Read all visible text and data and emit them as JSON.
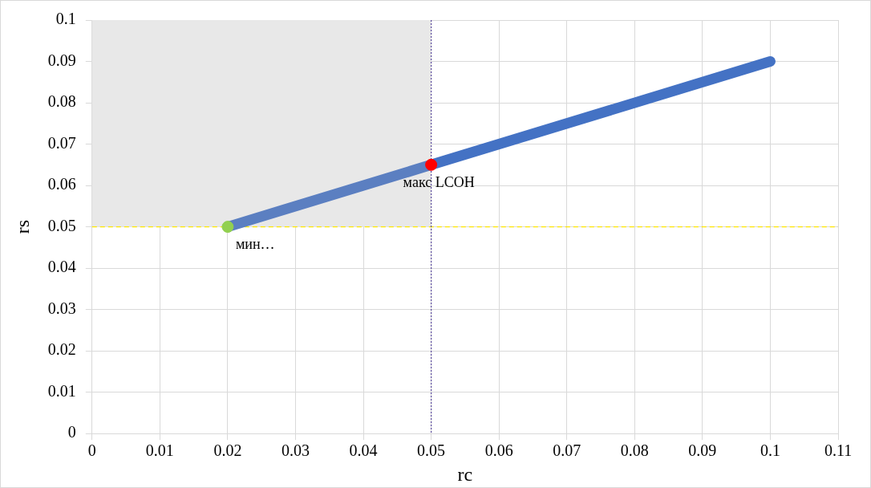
{
  "chart_data": {
    "type": "line",
    "xlabel": "rc",
    "ylabel": "rs",
    "xlim": [
      0,
      0.11
    ],
    "xticks": [
      0,
      0.01,
      0.02,
      0.03,
      0.04,
      0.05,
      0.06,
      0.07,
      0.08,
      0.09,
      0.1,
      0.11
    ],
    "ylim": [
      0,
      0.1
    ],
    "yticks": [
      0,
      0.01,
      0.02,
      0.03,
      0.04,
      0.05,
      0.06,
      0.07,
      0.08,
      0.09,
      0.1
    ],
    "grid": true,
    "legend": false,
    "line_style": "solid",
    "series": [
      {
        "marker": "none",
        "color": "#5b7fc1",
        "x": [
          0.02,
          0.05
        ],
        "values": [
          0.05,
          0.065
        ]
      },
      {
        "marker": "none",
        "color": "#4472c4",
        "x": [
          0.05,
          0.1
        ],
        "values": [
          0.065,
          0.09
        ]
      },
      {
        "type": "scatter",
        "marker": "circle",
        "color": "#92d050",
        "x": [
          0.02
        ],
        "values": [
          0.05
        ]
      },
      {
        "type": "scatter",
        "marker": "circle",
        "color": "#ff0000",
        "x": [
          0.05
        ],
        "values": [
          0.065
        ]
      }
    ],
    "ref_lines": [
      {
        "axis": "y",
        "value": 0.05,
        "color": "#ffe600",
        "line_style": "dashed"
      },
      {
        "axis": "x",
        "value": 0.05,
        "color": "#5b4a9c",
        "line_style": "dotted"
      }
    ],
    "bands": [
      {
        "axis": "x",
        "from": 0,
        "to": 0.05,
        "color": "#e8e8e8"
      }
    ],
    "annotations": [
      {
        "text": "макс LCOH",
        "x": 0.05,
        "y": 0.065
      },
      {
        "text": "мин…",
        "x": 0.02,
        "y": 0.05
      }
    ]
  }
}
